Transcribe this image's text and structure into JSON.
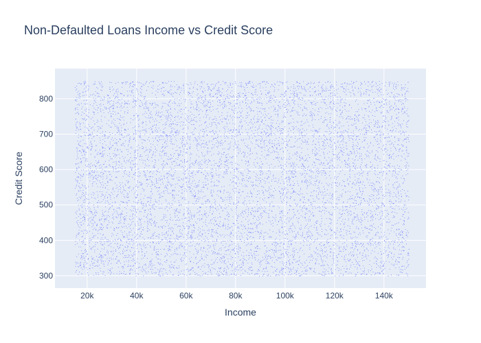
{
  "chart_data": {
    "type": "scatter",
    "title": "Non-Defaulted Loans Income vs Credit Score",
    "xlabel": "Income",
    "ylabel": "Credit Score",
    "xlim": [
      7000,
      157000
    ],
    "ylim": [
      265,
      885
    ],
    "x_ticks": [
      {
        "value": 20000,
        "label": "20k"
      },
      {
        "value": 40000,
        "label": "40k"
      },
      {
        "value": 60000,
        "label": "60k"
      },
      {
        "value": 80000,
        "label": "80k"
      },
      {
        "value": 100000,
        "label": "100k"
      },
      {
        "value": 120000,
        "label": "120k"
      },
      {
        "value": 140000,
        "label": "140k"
      }
    ],
    "y_ticks": [
      {
        "value": 300,
        "label": "300"
      },
      {
        "value": 400,
        "label": "400"
      },
      {
        "value": 500,
        "label": "500"
      },
      {
        "value": 600,
        "label": "600"
      },
      {
        "value": 700,
        "label": "700"
      },
      {
        "value": 800,
        "label": "800"
      }
    ],
    "series": [
      {
        "distribution": "uniform",
        "x_range": [
          15000,
          150000
        ],
        "y_range": [
          300,
          850
        ],
        "marker_color": "#636efa"
      }
    ],
    "grid": true,
    "legend": "none",
    "plot_background": "#e5ecf6"
  }
}
